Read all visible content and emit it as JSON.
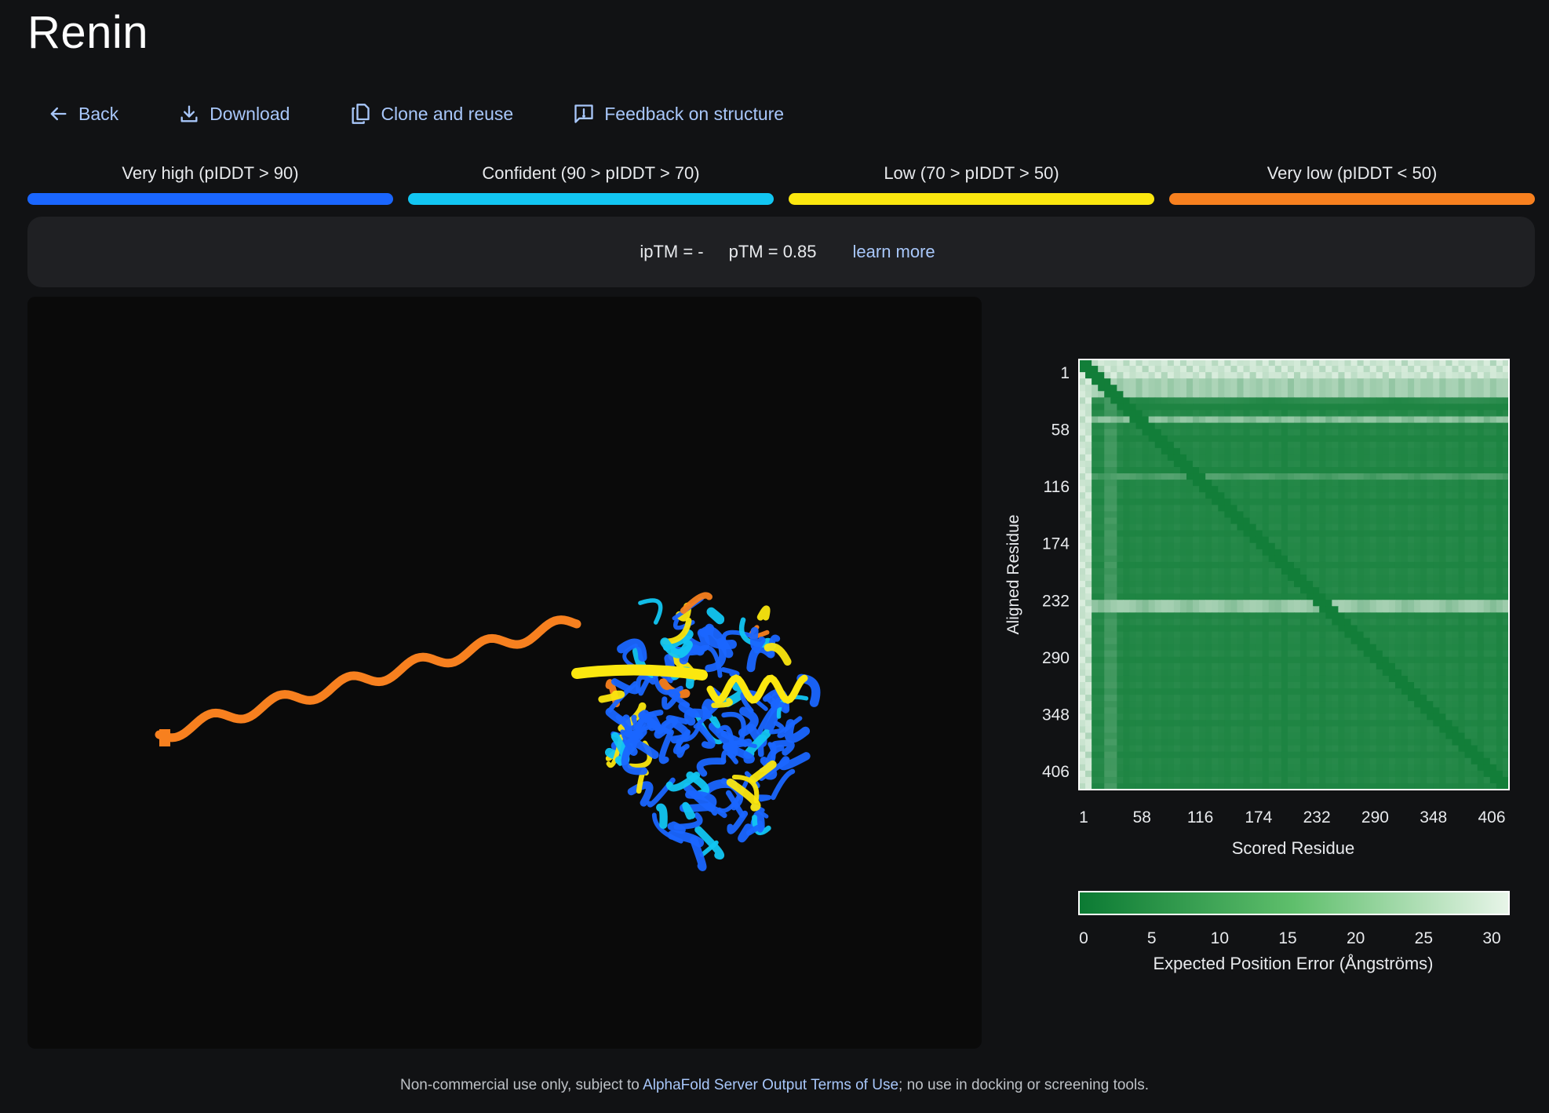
{
  "page": {
    "title": "Renin"
  },
  "toolbar": {
    "back": {
      "label": "Back",
      "icon": "arrow-left-icon"
    },
    "download": {
      "label": "Download",
      "icon": "download-icon"
    },
    "clone": {
      "label": "Clone and reuse",
      "icon": "copy-icon"
    },
    "feedback": {
      "label": "Feedback on structure",
      "icon": "feedback-icon"
    }
  },
  "legend": [
    {
      "label": "Very high (pIDDT > 90)",
      "color": "#1a66ff"
    },
    {
      "label": "Confident (90 > pIDDT > 70)",
      "color": "#12c6f2"
    },
    {
      "label": "Low (70 > pIDDT > 50)",
      "color": "#fbe70f"
    },
    {
      "label": "Very low (pIDDT < 50)",
      "color": "#f7801f"
    }
  ],
  "metrics": {
    "iptm": "ipTM = -",
    "ptm": "pTM = 0.85",
    "learn_more": "learn more"
  },
  "structure_viewer": {
    "chain_colors": [
      "#1a66ff",
      "#12c6f2",
      "#fbe70f",
      "#f7801f"
    ]
  },
  "chart_data": {
    "type": "heatmap",
    "xlabel": "Scored Residue",
    "ylabel": "Aligned Residue",
    "x_ticks": [
      "1",
      "58",
      "116",
      "174",
      "232",
      "290",
      "348",
      "406"
    ],
    "y_ticks": [
      "1",
      "58",
      "116",
      "174",
      "232",
      "290",
      "348",
      "406"
    ],
    "residue_range": [
      1,
      406
    ],
    "colorbar": {
      "label": "Expected Position Error (Ångströms)",
      "ticks": [
        "0",
        "5",
        "10",
        "15",
        "20",
        "25",
        "30"
      ],
      "range": [
        0,
        30
      ],
      "colors": [
        "#0b7a33",
        "#e8f5e9"
      ]
    }
  },
  "footer": {
    "text_before": "Non-commercial use only, subject to ",
    "link": "AlphaFold Server Output Terms of Use",
    "text_after": "; no use in docking or screening tools."
  }
}
